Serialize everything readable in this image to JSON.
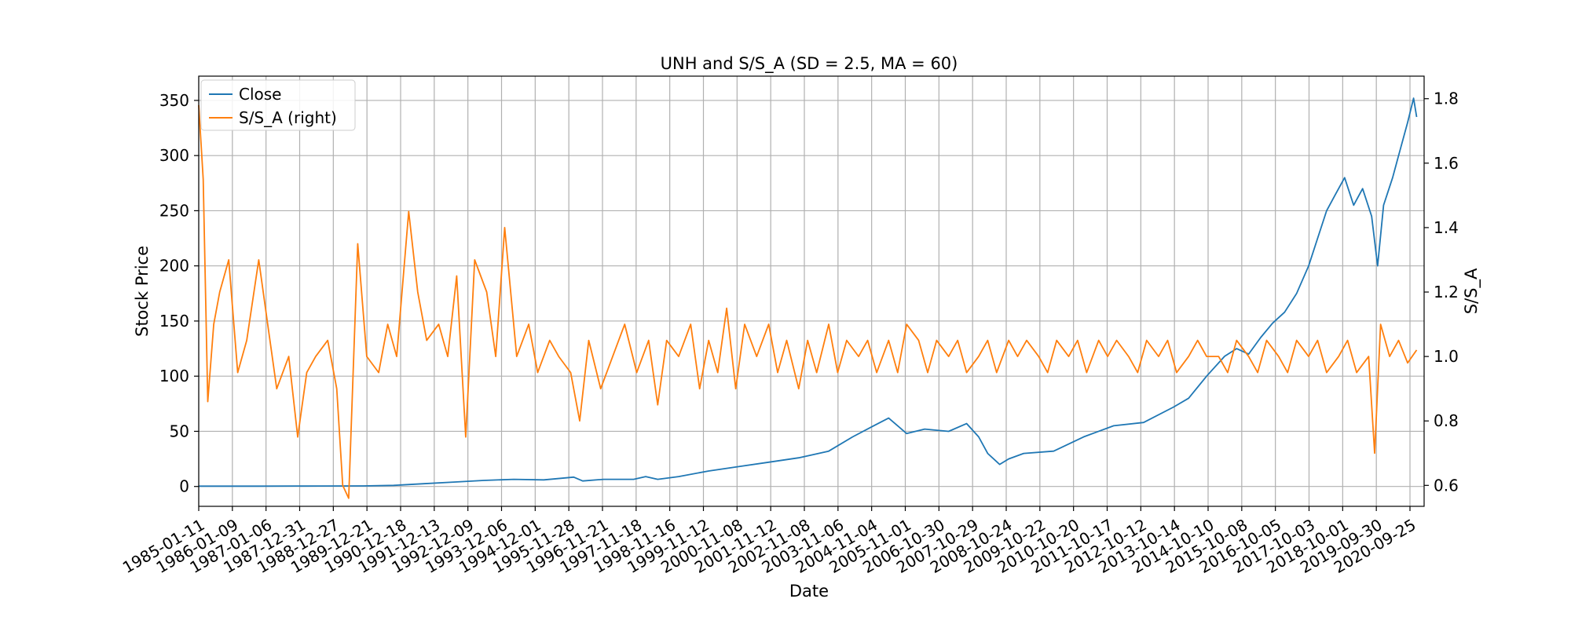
{
  "chart_data": {
    "type": "line",
    "title": "UNH and S/S_A (SD = 2.5, MA = 60)",
    "xlabel": "Date",
    "ylabel": "Stock Price",
    "ylabel_right": "S/S_A",
    "x_tick_labels": [
      "1985-01-11",
      "1986-01-09",
      "1987-01-06",
      "1987-12-31",
      "1988-12-27",
      "1989-12-21",
      "1990-12-18",
      "1991-12-13",
      "1992-12-09",
      "1993-12-06",
      "1994-12-01",
      "1995-11-28",
      "1996-11-21",
      "1997-11-18",
      "1998-11-16",
      "1999-11-12",
      "2000-11-08",
      "2001-11-12",
      "2002-11-08",
      "2003-11-06",
      "2004-11-04",
      "2005-11-01",
      "2006-10-30",
      "2007-10-29",
      "2008-10-24",
      "2009-10-22",
      "2010-10-20",
      "2011-10-17",
      "2012-10-12",
      "2013-10-14",
      "2014-10-10",
      "2015-10-08",
      "2016-10-05",
      "2017-10-03",
      "2018-10-01",
      "2019-09-30",
      "2020-09-25"
    ],
    "y_ticks_left": [
      0,
      50,
      100,
      150,
      200,
      250,
      300,
      350
    ],
    "y_ticks_right": [
      0.6,
      0.8,
      1.0,
      1.2,
      1.4,
      1.6,
      1.8
    ],
    "ylim_left": [
      -18,
      372
    ],
    "ylim_right": [
      0.535,
      1.87
    ],
    "grid": true,
    "legend_position": "upper-left",
    "legend": [
      "Close",
      "S/S_A (right)"
    ],
    "colors": {
      "Close": "#1f77b4",
      "S/S_A": "#ff7f0e"
    },
    "series": [
      {
        "name": "Close",
        "axis": "left",
        "points": [
          [
            1985.0,
            0.3
          ],
          [
            1987.0,
            0.3
          ],
          [
            1989.0,
            0.4
          ],
          [
            1990.5,
            0.5
          ],
          [
            1991.5,
            1.0
          ],
          [
            1992.5,
            2.5
          ],
          [
            1993.5,
            4.0
          ],
          [
            1994.5,
            5.5
          ],
          [
            1995.5,
            6.5
          ],
          [
            1996.5,
            6.0
          ],
          [
            1997.5,
            8.5
          ],
          [
            1997.8,
            5.0
          ],
          [
            1998.5,
            6.5
          ],
          [
            1999.5,
            6.5
          ],
          [
            1999.9,
            9.0
          ],
          [
            2000.3,
            6.5
          ],
          [
            2001.0,
            9.0
          ],
          [
            2002.0,
            14.0
          ],
          [
            2003.0,
            18.0
          ],
          [
            2004.0,
            22.0
          ],
          [
            2005.0,
            26.0
          ],
          [
            2006.0,
            32.0
          ],
          [
            2006.8,
            45.0
          ],
          [
            2007.5,
            55.0
          ],
          [
            2008.0,
            62.0
          ],
          [
            2008.3,
            55.0
          ],
          [
            2008.6,
            48.0
          ],
          [
            2009.2,
            52.0
          ],
          [
            2010.0,
            50.0
          ],
          [
            2010.6,
            57.0
          ],
          [
            2011.0,
            45.0
          ],
          [
            2011.3,
            30.0
          ],
          [
            2011.7,
            20.0
          ],
          [
            2012.0,
            25.0
          ],
          [
            2012.5,
            30.0
          ],
          [
            2013.5,
            32.0
          ],
          [
            2014.5,
            45.0
          ],
          [
            2015.5,
            55.0
          ],
          [
            2016.5,
            58.0
          ],
          [
            2017.5,
            72.0
          ],
          [
            2018.0,
            80.0
          ],
          [
            2018.6,
            100.0
          ],
          [
            2019.2,
            118.0
          ],
          [
            2019.6,
            125.0
          ],
          [
            2020.0,
            120.0
          ],
          [
            2020.4,
            135.0
          ],
          [
            2020.8,
            148.0
          ],
          [
            2021.2,
            158.0
          ],
          [
            2021.6,
            175.0
          ],
          [
            2022.0,
            200.0
          ],
          [
            2022.3,
            225.0
          ],
          [
            2022.6,
            250.0
          ],
          [
            2022.9,
            265.0
          ],
          [
            2023.2,
            280.0
          ],
          [
            2023.5,
            255.0
          ],
          [
            2023.8,
            270.0
          ],
          [
            2024.1,
            245.0
          ],
          [
            2024.3,
            200.0
          ],
          [
            2024.5,
            255.0
          ],
          [
            2024.8,
            280.0
          ],
          [
            2025.0,
            300.0
          ],
          [
            2025.3,
            330.0
          ],
          [
            2025.5,
            352.0
          ],
          [
            2025.6,
            335.0
          ]
        ]
      },
      {
        "name": "S/S_A (right)",
        "axis": "right",
        "points": [
          [
            1985.0,
            1.78
          ],
          [
            1985.15,
            1.55
          ],
          [
            1985.3,
            0.86
          ],
          [
            1985.5,
            1.1
          ],
          [
            1985.7,
            1.2
          ],
          [
            1986.0,
            1.3
          ],
          [
            1986.3,
            0.95
          ],
          [
            1986.6,
            1.05
          ],
          [
            1987.0,
            1.3
          ],
          [
            1987.3,
            1.1
          ],
          [
            1987.6,
            0.9
          ],
          [
            1988.0,
            1.0
          ],
          [
            1988.3,
            0.75
          ],
          [
            1988.6,
            0.95
          ],
          [
            1988.9,
            1.0
          ],
          [
            1989.3,
            1.05
          ],
          [
            1989.6,
            0.9
          ],
          [
            1989.8,
            0.6
          ],
          [
            1990.0,
            0.56
          ],
          [
            1990.3,
            1.35
          ],
          [
            1990.6,
            1.0
          ],
          [
            1991.0,
            0.95
          ],
          [
            1991.3,
            1.1
          ],
          [
            1991.6,
            1.0
          ],
          [
            1992.0,
            1.45
          ],
          [
            1992.3,
            1.2
          ],
          [
            1992.6,
            1.05
          ],
          [
            1993.0,
            1.1
          ],
          [
            1993.3,
            1.0
          ],
          [
            1993.6,
            1.25
          ],
          [
            1993.9,
            0.75
          ],
          [
            1994.2,
            1.3
          ],
          [
            1994.6,
            1.2
          ],
          [
            1994.9,
            1.0
          ],
          [
            1995.2,
            1.4
          ],
          [
            1995.6,
            1.0
          ],
          [
            1996.0,
            1.1
          ],
          [
            1996.3,
            0.95
          ],
          [
            1996.7,
            1.05
          ],
          [
            1997.0,
            1.0
          ],
          [
            1997.4,
            0.95
          ],
          [
            1997.7,
            0.8
          ],
          [
            1998.0,
            1.05
          ],
          [
            1998.4,
            0.9
          ],
          [
            1998.8,
            1.0
          ],
          [
            1999.2,
            1.1
          ],
          [
            1999.6,
            0.95
          ],
          [
            2000.0,
            1.05
          ],
          [
            2000.3,
            0.85
          ],
          [
            2000.6,
            1.05
          ],
          [
            2001.0,
            1.0
          ],
          [
            2001.4,
            1.1
          ],
          [
            2001.7,
            0.9
          ],
          [
            2002.0,
            1.05
          ],
          [
            2002.3,
            0.95
          ],
          [
            2002.6,
            1.15
          ],
          [
            2002.9,
            0.9
          ],
          [
            2003.2,
            1.1
          ],
          [
            2003.6,
            1.0
          ],
          [
            2004.0,
            1.1
          ],
          [
            2004.3,
            0.95
          ],
          [
            2004.6,
            1.05
          ],
          [
            2005.0,
            0.9
          ],
          [
            2005.3,
            1.05
          ],
          [
            2005.6,
            0.95
          ],
          [
            2006.0,
            1.1
          ],
          [
            2006.3,
            0.95
          ],
          [
            2006.6,
            1.05
          ],
          [
            2007.0,
            1.0
          ],
          [
            2007.3,
            1.05
          ],
          [
            2007.6,
            0.95
          ],
          [
            2008.0,
            1.05
          ],
          [
            2008.3,
            0.95
          ],
          [
            2008.6,
            1.1
          ],
          [
            2009.0,
            1.05
          ],
          [
            2009.3,
            0.95
          ],
          [
            2009.6,
            1.05
          ],
          [
            2010.0,
            1.0
          ],
          [
            2010.3,
            1.05
          ],
          [
            2010.6,
            0.95
          ],
          [
            2011.0,
            1.0
          ],
          [
            2011.3,
            1.05
          ],
          [
            2011.6,
            0.95
          ],
          [
            2012.0,
            1.05
          ],
          [
            2012.3,
            1.0
          ],
          [
            2012.6,
            1.05
          ],
          [
            2013.0,
            1.0
          ],
          [
            2013.3,
            0.95
          ],
          [
            2013.6,
            1.05
          ],
          [
            2014.0,
            1.0
          ],
          [
            2014.3,
            1.05
          ],
          [
            2014.6,
            0.95
          ],
          [
            2015.0,
            1.05
          ],
          [
            2015.3,
            1.0
          ],
          [
            2015.6,
            1.05
          ],
          [
            2016.0,
            1.0
          ],
          [
            2016.3,
            0.95
          ],
          [
            2016.6,
            1.05
          ],
          [
            2017.0,
            1.0
          ],
          [
            2017.3,
            1.05
          ],
          [
            2017.6,
            0.95
          ],
          [
            2018.0,
            1.0
          ],
          [
            2018.3,
            1.05
          ],
          [
            2018.6,
            1.0
          ],
          [
            2019.0,
            1.0
          ],
          [
            2019.3,
            0.95
          ],
          [
            2019.6,
            1.05
          ],
          [
            2020.0,
            1.0
          ],
          [
            2020.3,
            0.95
          ],
          [
            2020.6,
            1.05
          ],
          [
            2021.0,
            1.0
          ],
          [
            2021.3,
            0.95
          ],
          [
            2021.6,
            1.05
          ],
          [
            2022.0,
            1.0
          ],
          [
            2022.3,
            1.05
          ],
          [
            2022.6,
            0.95
          ],
          [
            2023.0,
            1.0
          ],
          [
            2023.3,
            1.05
          ],
          [
            2023.6,
            0.95
          ],
          [
            2024.0,
            1.0
          ],
          [
            2024.2,
            0.7
          ],
          [
            2024.4,
            1.1
          ],
          [
            2024.7,
            1.0
          ],
          [
            2025.0,
            1.05
          ],
          [
            2025.3,
            0.98
          ],
          [
            2025.6,
            1.02
          ]
        ]
      }
    ]
  }
}
